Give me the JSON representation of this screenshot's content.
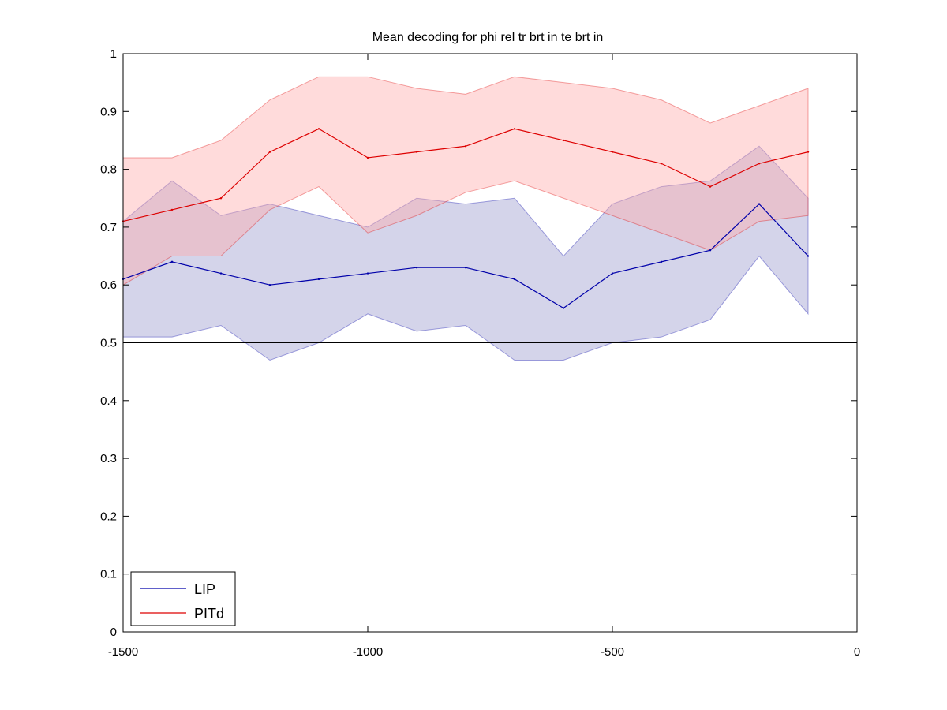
{
  "chart_data": {
    "type": "line",
    "title": "Mean decoding for phi rel tr brt in te brt in",
    "xlabel": "",
    "ylabel": "",
    "xlim": [
      -1500,
      0
    ],
    "ylim": [
      0,
      1
    ],
    "xticks": [
      -1500,
      -1000,
      -500,
      0
    ],
    "xtick_labels": [
      "-1500",
      "-1000",
      "-500",
      "0"
    ],
    "yticks": [
      0,
      0.1,
      0.2,
      0.3,
      0.4,
      0.5,
      0.6,
      0.7,
      0.8,
      0.9,
      1
    ],
    "ytick_labels": [
      "0",
      "0.1",
      "0.2",
      "0.3",
      "0.4",
      "0.5",
      "0.6",
      "0.7",
      "0.8",
      "0.9",
      "1"
    ],
    "grid": false,
    "legend_position": "bottom-left",
    "reference_line": {
      "y": 0.5,
      "color": "#000000"
    },
    "x": [
      -1500,
      -1400,
      -1300,
      -1200,
      -1100,
      -1000,
      -900,
      -800,
      -700,
      -600,
      -500,
      -400,
      -300,
      -200,
      -100
    ],
    "series": [
      {
        "name": "LIP",
        "color": "#0000aa",
        "band_color": "#9999cc",
        "mean": [
          0.61,
          0.64,
          0.62,
          0.6,
          0.61,
          0.62,
          0.63,
          0.63,
          0.61,
          0.56,
          0.62,
          0.64,
          0.66,
          0.74,
          0.65
        ],
        "upper": [
          0.71,
          0.78,
          0.72,
          0.74,
          0.72,
          0.7,
          0.75,
          0.74,
          0.75,
          0.65,
          0.74,
          0.77,
          0.78,
          0.84,
          0.75
        ],
        "lower": [
          0.51,
          0.51,
          0.53,
          0.47,
          0.5,
          0.55,
          0.52,
          0.53,
          0.47,
          0.47,
          0.5,
          0.51,
          0.54,
          0.65,
          0.55
        ]
      },
      {
        "name": "PITd",
        "color": "#dd0000",
        "band_color": "#ffaaaa",
        "mean": [
          0.71,
          0.73,
          0.75,
          0.83,
          0.87,
          0.82,
          0.83,
          0.84,
          0.87,
          0.85,
          0.83,
          0.81,
          0.77,
          0.81,
          0.83
        ],
        "upper": [
          0.82,
          0.82,
          0.85,
          0.92,
          0.96,
          0.96,
          0.94,
          0.93,
          0.96,
          0.95,
          0.94,
          0.92,
          0.88,
          0.91,
          0.94
        ],
        "lower": [
          0.6,
          0.65,
          0.65,
          0.73,
          0.77,
          0.69,
          0.72,
          0.76,
          0.78,
          0.75,
          0.72,
          0.69,
          0.66,
          0.71,
          0.72
        ]
      }
    ]
  }
}
